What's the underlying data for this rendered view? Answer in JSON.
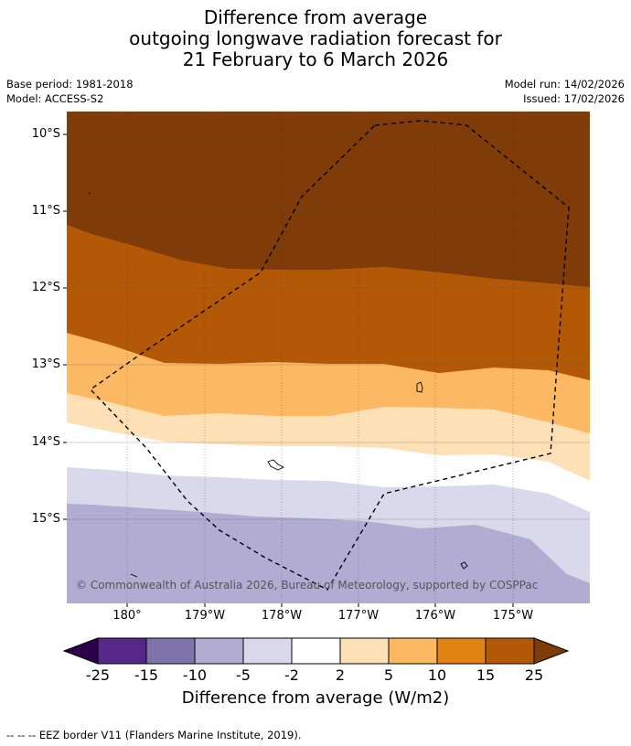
{
  "title": {
    "line1": "Difference from average",
    "line2": "outgoing longwave radiation forecast for",
    "line3": "21 February to 6 March 2026"
  },
  "meta": {
    "base_period": "Base period: 1981-2018",
    "model": "Model: ACCESS-S2",
    "model_run": "Model run: 14/02/2026",
    "issued": "Issued: 17/02/2026"
  },
  "map": {
    "lat_labels": [
      "10°S",
      "11°S",
      "12°S",
      "13°S",
      "14°S",
      "15°S"
    ],
    "lon_labels": [
      "180°",
      "179°W",
      "178°W",
      "177°W",
      "176°W",
      "175°W"
    ],
    "copyright": "© Commonwealth of Australia 2026, Bureau of Meteorology, supported by COSPPac",
    "band_colors": {
      "b25p": "#7f3b08",
      "b15_25": "#b35806",
      "b10_15": "#e08214",
      "b5_10": "#fdb863",
      "b2_5": "#fee0b6",
      "neutral": "#ffffff",
      "bm2_m5": "#d8daeb",
      "bm5_m10": "#b2abd2"
    },
    "eez_style": "dashed"
  },
  "colorbar": {
    "labels": [
      "-25",
      "-15",
      "-10",
      "-5",
      "-2",
      "2",
      "5",
      "10",
      "15",
      "25"
    ],
    "colors": [
      "#2d004b",
      "#542788",
      "#8073ac",
      "#b2abd2",
      "#d8daeb",
      "#ffffff",
      "#fee0b6",
      "#fdb863",
      "#e08214",
      "#b35806",
      "#7f3b08"
    ],
    "title": "Difference from average (W/m2)"
  },
  "footnote": "--  --  -- EEZ border V11 (Flanders Marine Institute, 2019)."
}
